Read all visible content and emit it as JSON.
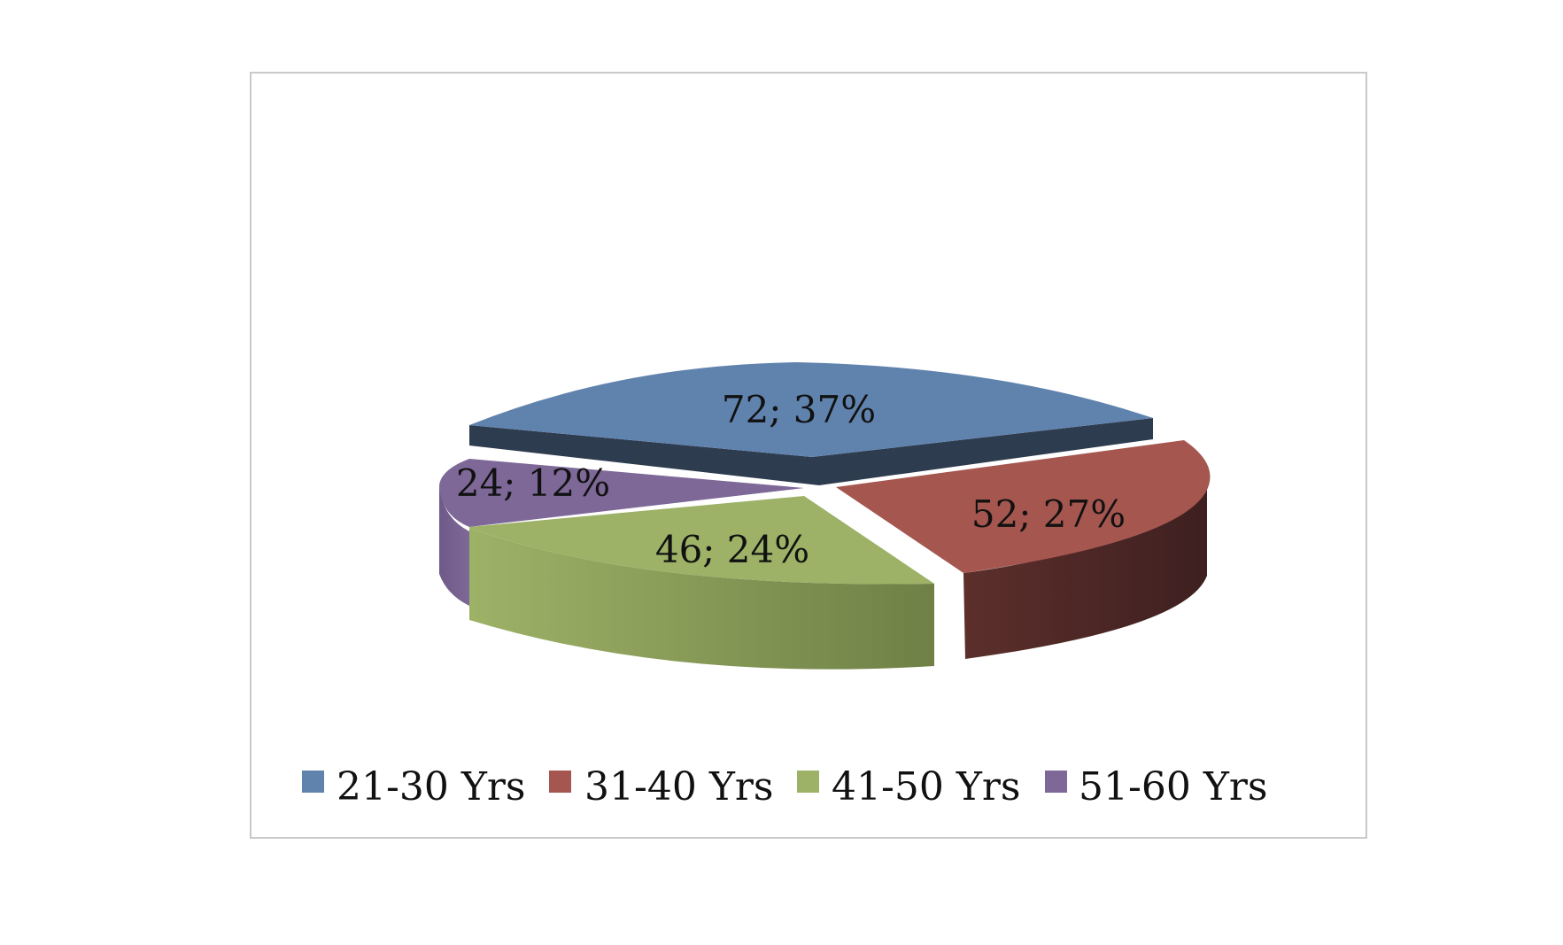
{
  "chart_data": {
    "type": "pie",
    "title": "",
    "style": "3d-exploded",
    "legend_position": "bottom",
    "categories": [
      "21-30 Yrs",
      "31-40 Yrs",
      "41-50 Yrs",
      "51-60 Yrs"
    ],
    "values": [
      72,
      52,
      46,
      24
    ],
    "percentages": [
      "37%",
      "27%",
      "24%",
      "12%"
    ],
    "labels": [
      "72; 37%",
      "52; 27%",
      "46; 24%",
      "24; 12%"
    ],
    "colors": [
      "#6083AE",
      "#A5564F",
      "#9DB267",
      "#7E6897"
    ],
    "side_colors": [
      "#2E3C4F",
      "#55302C",
      "#7E8F4E",
      "#5E4F73"
    ]
  }
}
